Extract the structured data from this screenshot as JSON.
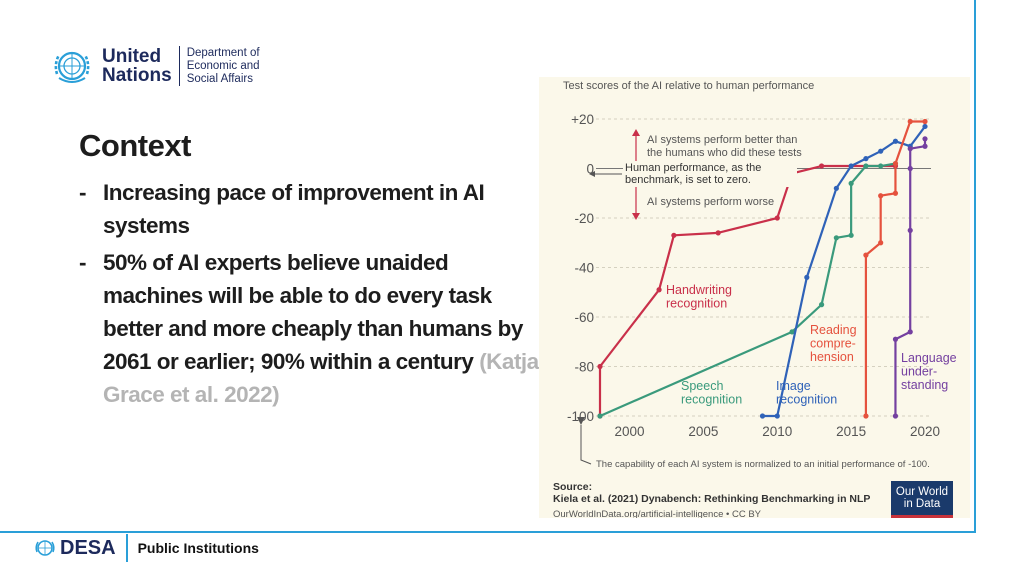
{
  "header": {
    "org_line1": "United",
    "org_line2": "Nations",
    "dept_line1": "Department of",
    "dept_line2": "Economic and",
    "dept_line3": "Social Affairs"
  },
  "content": {
    "title": "Context",
    "bullets": [
      {
        "text": "Increasing pace of improvement in AI systems",
        "citation": ""
      },
      {
        "text": "50% of AI experts believe unaided machines will be able to do every task better and more cheaply than humans by 2061 or earlier; 90% within a century",
        "citation": "(Katja Grace et al. 2022)"
      }
    ]
  },
  "footer": {
    "brand": "DESA",
    "section": "Public Institutions"
  },
  "colors": {
    "accent": "#2a9fd8",
    "brand_navy": "#1d2a5c",
    "handwriting": "#c9304a",
    "speech": "#3a9a7c",
    "image": "#2f62b8",
    "reading": "#e5523e",
    "language": "#7440a0"
  },
  "chart_data": {
    "type": "line",
    "title": "Test scores of the AI relative to human performance",
    "ylim": [
      -100,
      20
    ],
    "xlim": [
      1998,
      2020
    ],
    "yticks": [
      {
        "value": 20,
        "label": "+20"
      },
      {
        "value": 0,
        "label": "0"
      },
      {
        "value": -20,
        "label": "-20"
      },
      {
        "value": -40,
        "label": "-40"
      },
      {
        "value": -60,
        "label": "-60"
      },
      {
        "value": -80,
        "label": "-80"
      },
      {
        "value": -100,
        "label": "-100"
      }
    ],
    "xticks": [
      {
        "value": 2000,
        "label": "2000"
      },
      {
        "value": 2005,
        "label": "2005"
      },
      {
        "value": 2010,
        "label": "2010"
      },
      {
        "value": 2015,
        "label": "2015"
      },
      {
        "value": 2020,
        "label": "2020"
      }
    ],
    "annotations": {
      "above": "AI systems perform better than the humans who did these tests",
      "baseline": "Human performance, as the benchmark, is set to zero.",
      "below": "AI systems perform worse",
      "normalization": "The capability of each AI system is normalized to an initial performance of -100."
    },
    "source_label": "Source:",
    "source": "Kiela et al. (2021) Dynabench: Rethinking Benchmarking in NLP",
    "source_url": "OurWorldInData.org/artificial-intelligence • CC BY",
    "badge_line1": "Our World",
    "badge_line2": "in Data",
    "series": [
      {
        "name": "Handwriting recognition",
        "label_lines": [
          "Handwriting",
          "recognition"
        ],
        "color": "#c9304a",
        "points": [
          [
            1998,
            -100
          ],
          [
            1998,
            -80
          ],
          [
            2002,
            -49
          ],
          [
            2003,
            -27
          ],
          [
            2006,
            -26
          ],
          [
            2010,
            -20
          ],
          [
            2011,
            -2
          ],
          [
            2013,
            1
          ],
          [
            2018,
            1
          ]
        ]
      },
      {
        "name": "Speech recognition",
        "label_lines": [
          "Speech",
          "recognition"
        ],
        "color": "#3a9a7c",
        "points": [
          [
            1998,
            -100
          ],
          [
            2011,
            -66
          ],
          [
            2013,
            -55
          ],
          [
            2014,
            -28
          ],
          [
            2015,
            -27
          ],
          [
            2015,
            -6
          ],
          [
            2016,
            1
          ],
          [
            2017,
            1
          ],
          [
            2018,
            2
          ]
        ]
      },
      {
        "name": "Image recognition",
        "label_lines": [
          "Image",
          "recognition"
        ],
        "color": "#2f62b8",
        "points": [
          [
            2009,
            -100
          ],
          [
            2010,
            -100
          ],
          [
            2012,
            -44
          ],
          [
            2014,
            -8
          ],
          [
            2015,
            1
          ],
          [
            2016,
            4
          ],
          [
            2017,
            7
          ],
          [
            2018,
            11
          ],
          [
            2019,
            9
          ],
          [
            2020,
            17
          ]
        ]
      },
      {
        "name": "Reading comprehension",
        "label_lines": [
          "Reading",
          "compre-",
          "hension"
        ],
        "color": "#e5523e",
        "points": [
          [
            2016,
            -100
          ],
          [
            2016,
            -35
          ],
          [
            2017,
            -30
          ],
          [
            2017,
            -11
          ],
          [
            2018,
            -10
          ],
          [
            2018,
            2
          ],
          [
            2019,
            19
          ],
          [
            2020,
            19
          ]
        ]
      },
      {
        "name": "Language understanding",
        "label_lines": [
          "Language",
          "under-",
          "standing"
        ],
        "color": "#7440a0",
        "points": [
          [
            2018,
            -100
          ],
          [
            2018,
            -69
          ],
          [
            2019,
            -66
          ],
          [
            2019,
            -25
          ],
          [
            2019,
            0
          ],
          [
            2019,
            8
          ],
          [
            2020,
            9
          ],
          [
            2020,
            12
          ]
        ]
      }
    ]
  }
}
